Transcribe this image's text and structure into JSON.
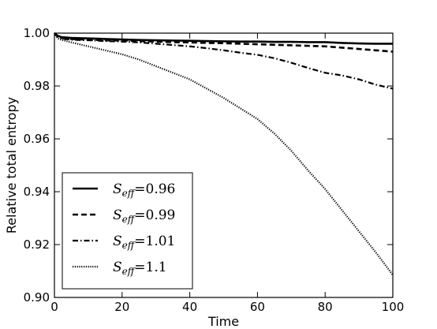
{
  "chart_data": {
    "type": "line",
    "title": "",
    "xlabel": "Time",
    "ylabel": "Relative total entropy",
    "xlim": [
      0,
      100
    ],
    "ylim": [
      0.9,
      1.0
    ],
    "xticks": [
      "0",
      "20",
      "40",
      "60",
      "80",
      "100"
    ],
    "yticks": [
      "0.90",
      "0.92",
      "0.94",
      "0.96",
      "0.98",
      "1.00"
    ],
    "grid": false,
    "legend_position": "lower-left",
    "x": [
      0,
      1,
      2,
      5,
      10,
      15,
      20,
      25,
      30,
      35,
      40,
      45,
      50,
      55,
      60,
      65,
      70,
      75,
      80,
      85,
      90,
      95,
      100
    ],
    "series": [
      {
        "name_prefix": "S",
        "name_sub": "eff",
        "name_value": "=0.96",
        "style": "solid",
        "values": [
          1.0,
          0.999,
          0.9985,
          0.9982,
          0.998,
          0.9978,
          0.9976,
          0.9974,
          0.9973,
          0.9972,
          0.9971,
          0.997,
          0.9969,
          0.9968,
          0.9968,
          0.9967,
          0.9967,
          0.9966,
          0.9966,
          0.9963,
          0.9961,
          0.996,
          0.996
        ]
      },
      {
        "name_prefix": "S",
        "name_sub": "eff",
        "name_value": "=0.99",
        "style": "dashed",
        "values": [
          1.0,
          0.9988,
          0.9982,
          0.9978,
          0.9975,
          0.9973,
          0.9972,
          0.997,
          0.9968,
          0.9966,
          0.9965,
          0.9963,
          0.9962,
          0.996,
          0.9958,
          0.9956,
          0.9954,
          0.9952,
          0.995,
          0.9945,
          0.994,
          0.9935,
          0.993
        ]
      },
      {
        "name_prefix": "S",
        "name_sub": "eff",
        "name_value": "=1.01",
        "style": "dashdot",
        "values": [
          1.0,
          0.9985,
          0.998,
          0.9975,
          0.9973,
          0.997,
          0.9968,
          0.9965,
          0.996,
          0.9955,
          0.995,
          0.9943,
          0.9935,
          0.9926,
          0.9918,
          0.9905,
          0.9888,
          0.9868,
          0.985,
          0.984,
          0.9825,
          0.9805,
          0.979
        ]
      },
      {
        "name_prefix": "S",
        "name_sub": "eff",
        "name_value": "=1.1",
        "style": "dotted",
        "values": [
          1.0,
          0.998,
          0.9975,
          0.9965,
          0.995,
          0.9935,
          0.992,
          0.99,
          0.9875,
          0.985,
          0.9825,
          0.979,
          0.9755,
          0.9715,
          0.9675,
          0.962,
          0.9555,
          0.948,
          0.941,
          0.933,
          0.925,
          0.917,
          0.9085
        ]
      }
    ]
  }
}
